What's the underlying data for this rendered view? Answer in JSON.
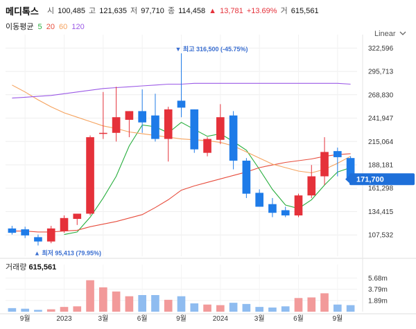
{
  "header": {
    "stock_name": "메디톡스",
    "open_label": "시",
    "open": "100,485",
    "high_label": "고",
    "high": "121,635",
    "low_label": "저",
    "low": "97,710",
    "close_label": "종",
    "close": "114,458",
    "change_arrow": "▲",
    "change": "13,781",
    "change_pct": "+13.69%",
    "volume_label": "거",
    "volume": "615,561"
  },
  "ma_legend": {
    "label": "이동평균",
    "periods": [
      {
        "text": "5",
        "color": "#27ae3d"
      },
      {
        "text": "20",
        "color": "#e74c3c"
      },
      {
        "text": "60",
        "color": "#f5a25d"
      },
      {
        "text": "120",
        "color": "#9b59e6"
      }
    ]
  },
  "scale_button": "Linear",
  "annotations": {
    "max": "▼ 최고 316,500 (-45.75%)",
    "min": "▲ 최저 95,413 (79.95%)",
    "current_price": "171,700"
  },
  "volume_panel": {
    "label": "거래량",
    "value": "615,561"
  },
  "chart_data": [
    {
      "type": "candlestick",
      "title": "메디톡스",
      "y_ticks": [
        "322,596",
        "295,713",
        "268,830",
        "241,947",
        "215,064",
        "188,181",
        "161,298",
        "134,415",
        "107,532"
      ],
      "y_tick_values": [
        322596,
        295713,
        268830,
        241947,
        215064,
        188181,
        161298,
        134415,
        107532
      ],
      "ylim": [
        83000,
        338000
      ],
      "x_ticks": [
        "9월",
        "2023",
        "3월",
        "6월",
        "9월",
        "2024",
        "3월",
        "6월",
        "9월"
      ],
      "x_tick_positions": [
        1.5,
        4.5,
        7.5,
        10.5,
        13.5,
        16.5,
        19.5,
        22.5,
        25.5
      ],
      "colors": {
        "up": "#e5313a",
        "down": "#1e7be8"
      },
      "candles": [
        {
          "o": 115000,
          "h": 118000,
          "l": 108000,
          "c": 110000
        },
        {
          "o": 114000,
          "h": 117000,
          "l": 104000,
          "c": 107000
        },
        {
          "o": 105000,
          "h": 108000,
          "l": 95413,
          "c": 100000
        },
        {
          "o": 100000,
          "h": 118000,
          "l": 98000,
          "c": 115000
        },
        {
          "o": 112000,
          "h": 130000,
          "l": 110000,
          "c": 127000
        },
        {
          "o": 126000,
          "h": 132000,
          "l": 119000,
          "c": 132000
        },
        {
          "o": 132000,
          "h": 222000,
          "l": 130000,
          "c": 220000
        },
        {
          "o": 225000,
          "h": 272000,
          "l": 218000,
          "c": 225000
        },
        {
          "o": 225000,
          "h": 278000,
          "l": 215000,
          "c": 243000
        },
        {
          "o": 240000,
          "h": 250000,
          "l": 220000,
          "c": 250000
        },
        {
          "o": 250000,
          "h": 275000,
          "l": 225000,
          "c": 237000
        },
        {
          "o": 245000,
          "h": 270000,
          "l": 215000,
          "c": 218000
        },
        {
          "o": 218000,
          "h": 255000,
          "l": 192000,
          "c": 252000
        },
        {
          "o": 262000,
          "h": 316500,
          "l": 243000,
          "c": 254000
        },
        {
          "o": 252000,
          "h": 252000,
          "l": 202000,
          "c": 206000
        },
        {
          "o": 202000,
          "h": 220000,
          "l": 198000,
          "c": 218000
        },
        {
          "o": 217000,
          "h": 258000,
          "l": 212000,
          "c": 243000
        },
        {
          "o": 245000,
          "h": 250000,
          "l": 183000,
          "c": 193000
        },
        {
          "o": 193000,
          "h": 196000,
          "l": 150000,
          "c": 155000
        },
        {
          "o": 156000,
          "h": 160000,
          "l": 140000,
          "c": 140000
        },
        {
          "o": 143000,
          "h": 150000,
          "l": 128000,
          "c": 133000
        },
        {
          "o": 136000,
          "h": 140000,
          "l": 128000,
          "c": 130000
        },
        {
          "o": 130000,
          "h": 155000,
          "l": 128000,
          "c": 153000
        },
        {
          "o": 153000,
          "h": 188000,
          "l": 150000,
          "c": 175000
        },
        {
          "o": 175000,
          "h": 220000,
          "l": 165000,
          "c": 203000
        },
        {
          "o": 204000,
          "h": 208000,
          "l": 175000,
          "c": 197000
        },
        {
          "o": 196000,
          "h": 198000,
          "l": 168000,
          "c": 171700
        }
      ],
      "ma_series": [
        {
          "name": "5",
          "color": "#27ae3d",
          "values": [
            null,
            null,
            null,
            null,
            108000,
            111000,
            128000,
            150000,
            175000,
            210000,
            234000,
            232000,
            225000,
            237000,
            229000,
            221000,
            224000,
            215000,
            205000,
            183000,
            160000,
            142000,
            138000,
            148000,
            165000,
            180000,
            185000
          ]
        },
        {
          "name": "20",
          "color": "#e74c3c",
          "values": [
            112000,
            112000,
            111000,
            111000,
            112000,
            113000,
            117000,
            120000,
            123000,
            127000,
            131000,
            139000,
            148000,
            159000,
            164000,
            168000,
            172000,
            176000,
            180000,
            185000,
            188000,
            191000,
            193000,
            195000,
            198000,
            200000,
            201000
          ]
        },
        {
          "name": "60",
          "color": "#f5a25d",
          "values": [
            280000,
            272000,
            263000,
            255000,
            248000,
            243000,
            238000,
            233000,
            230000,
            226000,
            224000,
            222000,
            220000,
            218000,
            217000,
            216000,
            214000,
            210000,
            203000,
            196000,
            189000,
            185000,
            181000,
            179000,
            183000,
            190000,
            198000
          ]
        },
        {
          "name": "120",
          "color": "#9b59e6",
          "values": [
            265000,
            266000,
            267000,
            268000,
            270000,
            272000,
            274000,
            276000,
            277000,
            278000,
            279000,
            280000,
            281000,
            281000,
            282000,
            282000,
            282000,
            282000,
            282000,
            282000,
            282000,
            282000,
            282000,
            282000,
            282000,
            282000,
            281000
          ]
        }
      ]
    },
    {
      "type": "bar",
      "title": "거래량",
      "y_ticks": [
        "5.68m",
        "3.79m",
        "1.89m"
      ],
      "y_tick_values": [
        5.68,
        3.79,
        1.89
      ],
      "ylim": [
        0,
        7.0
      ],
      "values": [
        0.6,
        0.5,
        0.3,
        0.4,
        0.8,
        0.9,
        5.3,
        4.1,
        3.4,
        2.6,
        2.8,
        2.8,
        2.0,
        2.6,
        1.4,
        1.2,
        1.1,
        1.5,
        1.3,
        0.8,
        0.7,
        0.9,
        2.3,
        2.4,
        3.1,
        1.2,
        1.1
      ],
      "colors": {
        "up": "#f29a9a",
        "down": "#8fbcf0"
      }
    }
  ]
}
